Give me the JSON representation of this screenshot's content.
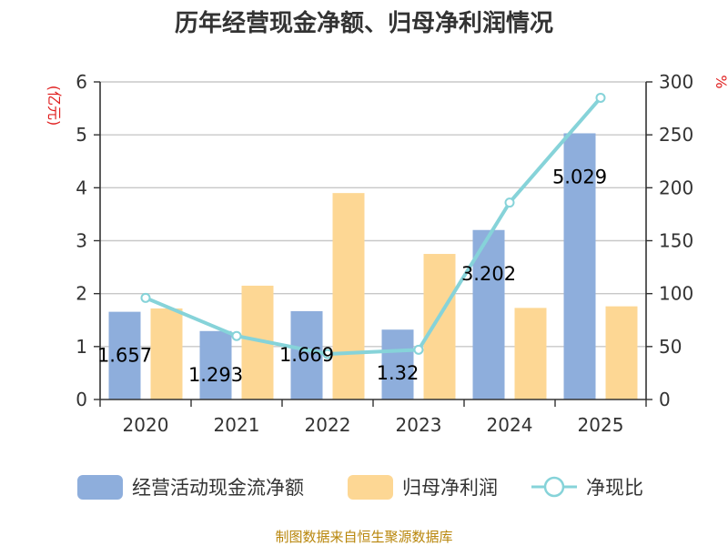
{
  "chart_data": {
    "type": "bar",
    "title": "历年经营现金净额、归母净利润情况",
    "categories": [
      "2020",
      "2021",
      "2022",
      "2023",
      "2024",
      "2025"
    ],
    "left_unit": "(亿元)",
    "right_unit": "%",
    "ylim": [
      0,
      6
    ],
    "y_ticks": [
      "0",
      "1",
      "2",
      "3",
      "4",
      "5",
      "6"
    ],
    "y2lim": [
      0,
      300
    ],
    "y2_ticks": [
      "0",
      "50",
      "100",
      "150",
      "200",
      "250",
      "300"
    ],
    "series": [
      {
        "name": "经营活动现金流净额",
        "type": "bar",
        "axis": "left",
        "color": "#8eaedc",
        "values": [
          1.657,
          1.293,
          1.669,
          1.32,
          3.202,
          5.029
        ],
        "labels": [
          "1.657",
          "1.293",
          "1.669",
          "1.32",
          "3.202",
          "5.029"
        ]
      },
      {
        "name": "归母净利润",
        "type": "bar",
        "axis": "left",
        "color": "#fdd794",
        "values": [
          1.72,
          2.15,
          3.9,
          2.75,
          1.73,
          1.76
        ]
      },
      {
        "name": "净现比",
        "type": "line",
        "axis": "right",
        "color": "#86d3d9",
        "values": [
          96,
          60,
          43,
          47,
          186,
          285
        ]
      }
    ],
    "legend_position": "bottom",
    "grid": true
  },
  "footer": {
    "source": "制图数据来自恒生聚源数据库"
  }
}
